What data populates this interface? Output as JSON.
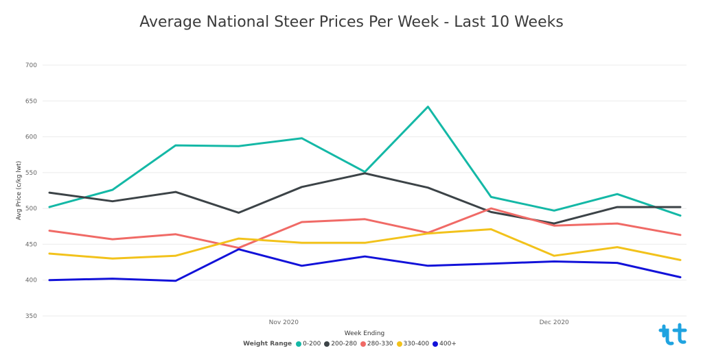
{
  "chart_data": {
    "type": "line",
    "title": "Average National Steer Prices Per Week - Last 10 Weeks",
    "xlabel": "Week Ending",
    "ylabel": "Avg Price (c/kg lwt)",
    "ylim": [
      350,
      700
    ],
    "yticks": [
      700,
      650,
      600,
      550,
      500,
      450,
      400,
      350
    ],
    "x": [
      "2020-10-10",
      "2020-10-17",
      "2020-10-24",
      "2020-10-31",
      "2020-11-07",
      "2020-11-14",
      "2020-11-21",
      "2020-11-28",
      "2020-12-05",
      "2020-12-12",
      "2020-12-19"
    ],
    "xticks": [
      {
        "label": "Nov 2020",
        "date": "2020-11-05"
      },
      {
        "label": "Dec 2020",
        "date": "2020-12-05"
      }
    ],
    "grid": true,
    "legend_title": "Weight Range",
    "legend_position": "bottom",
    "series": [
      {
        "name": "0-200",
        "color": "#14b8a6",
        "values": [
          502,
          526,
          588,
          587,
          598,
          551,
          642,
          516,
          497,
          520,
          490
        ]
      },
      {
        "name": "200-280",
        "color": "#3c4347",
        "values": [
          522,
          510,
          523,
          494,
          530,
          549,
          529,
          495,
          479,
          502,
          502
        ]
      },
      {
        "name": "280-330",
        "color": "#f06a66",
        "values": [
          469,
          457,
          464,
          445,
          481,
          485,
          466,
          500,
          476,
          479,
          463
        ]
      },
      {
        "name": "330-400",
        "color": "#f2c21b",
        "values": [
          437,
          430,
          434,
          458,
          452,
          452,
          465,
          471,
          434,
          446,
          428
        ]
      },
      {
        "name": "400+",
        "color": "#1212d9",
        "values": [
          400,
          402,
          399,
          443,
          420,
          433,
          420,
          423,
          426,
          424,
          404
        ]
      }
    ]
  },
  "logo": {
    "icon": "tick-logo-icon",
    "color": "#1fa3e0"
  }
}
